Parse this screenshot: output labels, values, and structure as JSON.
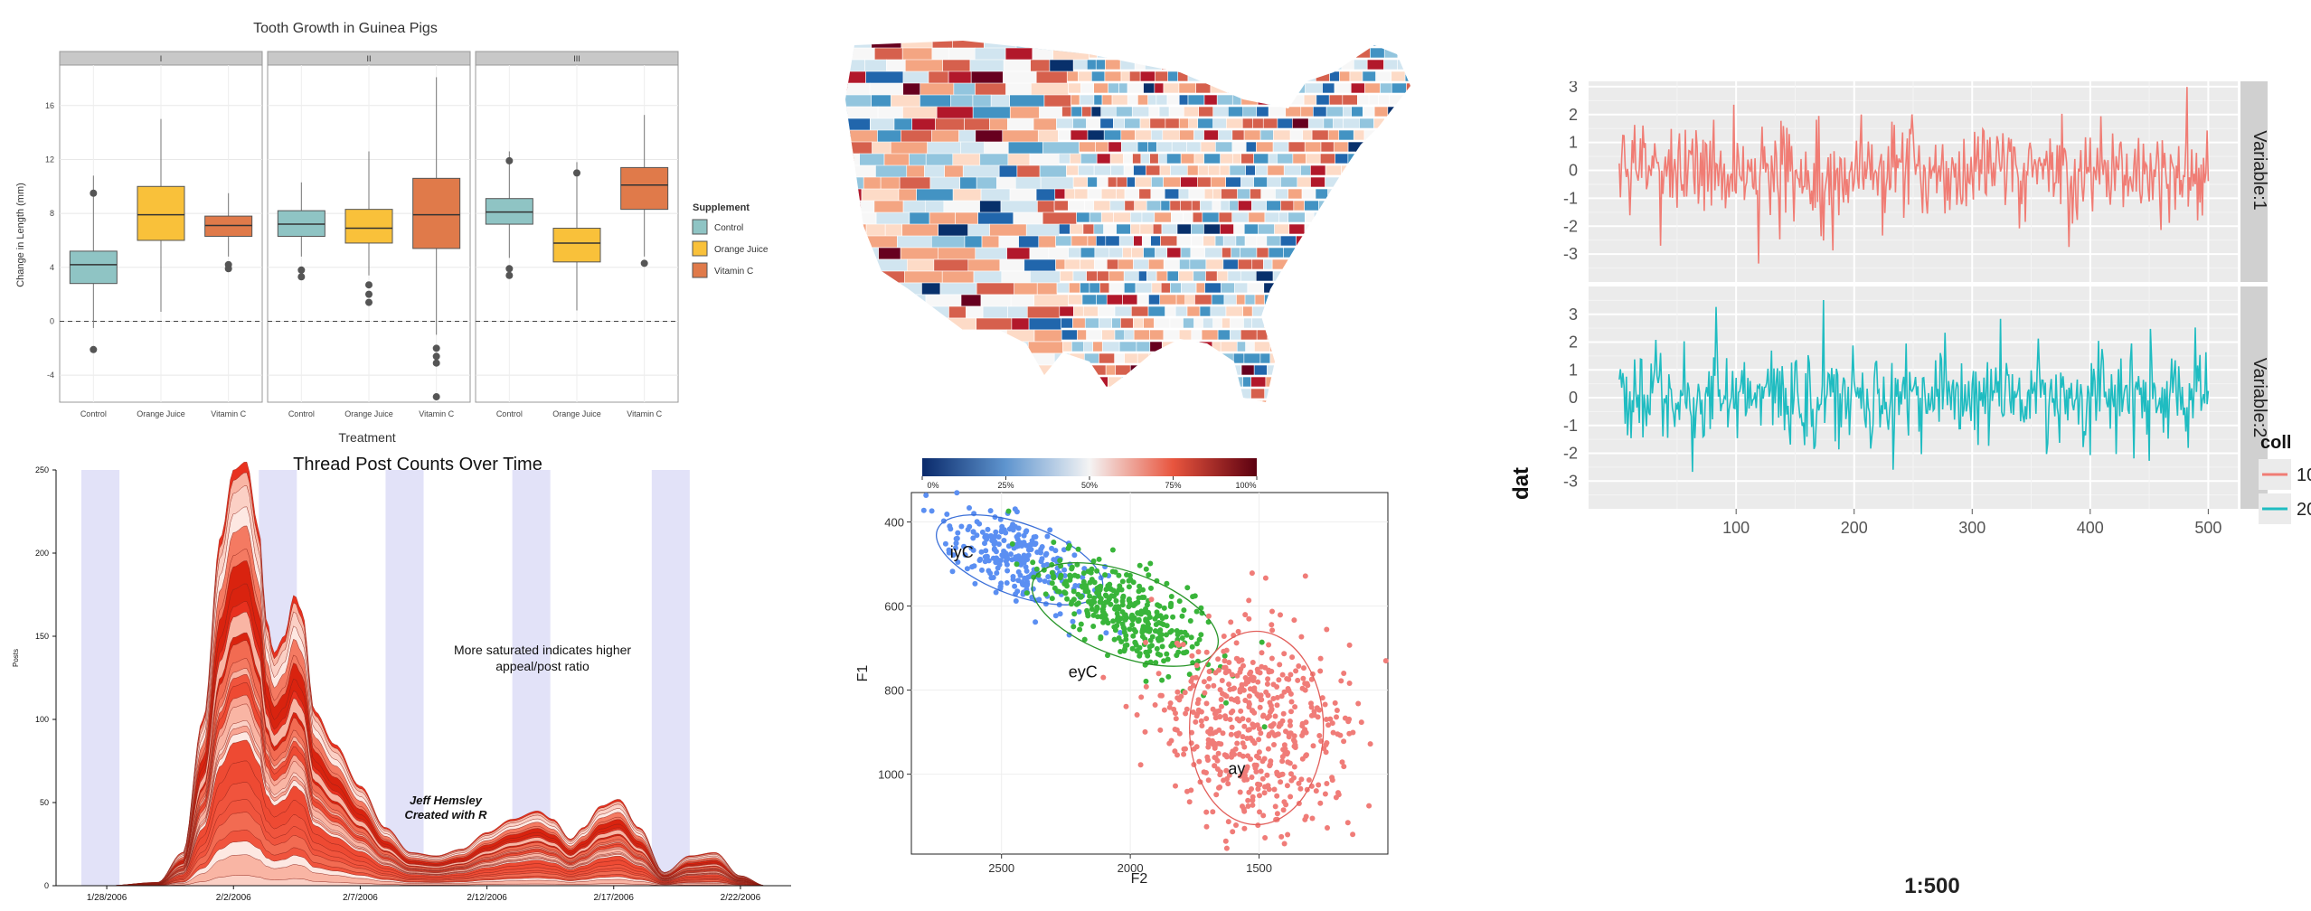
{
  "colors": {
    "control": "#8fc4c4",
    "oj": "#f9c13a",
    "vitc": "#e07a4a",
    "blue_pts": "#5b8ff2",
    "green_pts": "#39b53a",
    "red_pts": "#f07c78",
    "series1": "#f07c74",
    "series2": "#1fbcc1",
    "stream_red": "#e8311f",
    "stream_band": "#e2e2f8",
    "ggplot_bg": "#ebebeb",
    "strip_bg": "#d0d0d0"
  },
  "map_panel": {
    "icon": "us-counties-choropleth"
  },
  "chart_data": [
    {
      "id": "tooth",
      "type": "box",
      "title": "Tooth Growth in Guinea Pigs",
      "xlabel": "Treatment",
      "ylabel": "Change in Length (mm)",
      "yticks": [
        "-4",
        "0",
        "4",
        "8",
        "12",
        "16"
      ],
      "ylim": [
        -6,
        19
      ],
      "facets": [
        "I",
        "II",
        "III"
      ],
      "categories": [
        "Control",
        "Orange Juice",
        "Vitamin C"
      ],
      "legend": {
        "title": "Supplement",
        "entries": [
          "Control",
          "Orange Juice",
          "Vitamin C"
        ],
        "position": "right"
      },
      "boxes": [
        [
          {
            "q1": 2.8,
            "med": 4.2,
            "q3": 5.2,
            "wlo": -0.5,
            "whi": 10.8,
            "out": [
              9.5,
              -2.1
            ]
          },
          {
            "q1": 6.0,
            "med": 7.9,
            "q3": 10.0,
            "wlo": 0.7,
            "whi": 15.0,
            "out": []
          },
          {
            "q1": 6.3,
            "med": 7.1,
            "q3": 7.8,
            "wlo": 4.8,
            "whi": 9.5,
            "out": [
              4.2,
              3.9
            ]
          }
        ],
        [
          {
            "q1": 6.3,
            "med": 7.2,
            "q3": 8.2,
            "wlo": 4.8,
            "whi": 10.3,
            "out": [
              3.8,
              3.3
            ]
          },
          {
            "q1": 5.8,
            "med": 6.9,
            "q3": 8.3,
            "wlo": 3.4,
            "whi": 12.6,
            "out": [
              2.7,
              2.0,
              1.4
            ]
          },
          {
            "q1": 5.4,
            "med": 7.9,
            "q3": 10.6,
            "wlo": -1.0,
            "whi": 18.1,
            "out": [
              -2.0,
              -2.6,
              -3.1,
              -5.6
            ]
          }
        ],
        [
          {
            "q1": 7.2,
            "med": 8.1,
            "q3": 9.1,
            "wlo": 4.7,
            "whi": 12.6,
            "out": [
              11.9,
              3.9,
              3.4
            ]
          },
          {
            "q1": 4.4,
            "med": 5.8,
            "q3": 6.9,
            "wlo": 0.8,
            "whi": 11.8,
            "out": [
              11.0
            ]
          },
          {
            "q1": 8.3,
            "med": 10.1,
            "q3": 11.4,
            "wlo": 4.8,
            "whi": 15.3,
            "out": [
              4.3
            ]
          }
        ]
      ]
    },
    {
      "id": "stream",
      "type": "area",
      "title": "Thread Post Counts Over Time",
      "ylabel": "Posts",
      "xlabel": "",
      "yticks": [
        "0",
        "50",
        "100",
        "150",
        "200",
        "250"
      ],
      "ylim": [
        0,
        250
      ],
      "xticks": [
        "1/28/2006",
        "2/2/2006",
        "2/7/2006",
        "2/12/2006",
        "2/17/2006",
        "2/22/2006"
      ],
      "xtick_days": [
        0,
        5,
        10,
        15,
        20,
        25
      ],
      "xlim": [
        -2,
        27
      ],
      "weekend_bands_days": [
        [
          -1,
          0.5
        ],
        [
          6,
          7.5
        ],
        [
          11,
          12.5
        ],
        [
          16,
          17.5
        ]
      ],
      "total_posts": {
        "day": [
          0,
          2,
          3,
          3.8,
          4.5,
          5,
          5.5,
          6.0,
          6.3,
          6.6,
          7.0,
          7.4,
          7.7,
          8.2,
          9,
          10,
          11,
          12,
          13,
          14,
          15,
          16,
          17,
          17.6,
          18.3,
          18.8,
          19.5,
          20.2,
          21,
          22,
          23,
          24,
          25,
          26
        ],
        "posts": [
          0,
          2,
          20,
          100,
          210,
          250,
          255,
          215,
          160,
          140,
          150,
          175,
          165,
          105,
          85,
          60,
          35,
          20,
          18,
          22,
          32,
          40,
          45,
          40,
          28,
          35,
          48,
          52,
          35,
          8,
          18,
          20,
          6,
          0
        ]
      },
      "annotation": [
        "More saturated indicates higher",
        "appeal/post ratio"
      ],
      "credit": [
        "Jeff Hemsley",
        "Created with R"
      ]
    },
    {
      "id": "vowels",
      "type": "scatter",
      "xlabel": "F2",
      "ylabel": "F1",
      "xticks": [
        "2500",
        "2000",
        "1500"
      ],
      "xtick_values": [
        2500,
        2000,
        1500
      ],
      "xlim": [
        2850,
        1000
      ],
      "yticks": [
        "400",
        "600",
        "800",
        "1000"
      ],
      "ytick_values": [
        400,
        600,
        800,
        1000
      ],
      "ylim": [
        330,
        1190
      ],
      "colorbar": {
        "ticks": [
          "0%",
          "25%",
          "50%",
          "75%",
          "100%"
        ]
      },
      "groups": [
        {
          "label": "iyC",
          "cx": 2430,
          "cy": 490,
          "sx": 130,
          "sy": 50,
          "n": 260,
          "ellipse": {
            "rx": 340,
            "ry": 85,
            "angle": 20
          }
        },
        {
          "label": "eyC",
          "cx": 2020,
          "cy": 620,
          "sx": 160,
          "sy": 55,
          "n": 360,
          "ellipse": {
            "rx": 380,
            "ry": 100,
            "angle": 20
          }
        },
        {
          "label": "ay",
          "cx": 1510,
          "cy": 890,
          "sx": 180,
          "sy": 120,
          "n": 520,
          "ellipse": {
            "rx": 260,
            "ry": 230,
            "angle": 0
          }
        }
      ]
    },
    {
      "id": "ts",
      "type": "line",
      "xlabel": "1:500",
      "ylabel": "dat",
      "xticks": [
        "100",
        "200",
        "300",
        "400",
        "500"
      ],
      "xtick_values": [
        100,
        200,
        300,
        400,
        500
      ],
      "xlim": [
        -25,
        525
      ],
      "yticks": [
        "3",
        "2",
        "1",
        "0",
        "-1",
        "-2",
        "-3"
      ],
      "ytick_values": [
        3,
        2,
        1,
        0,
        -1,
        -2,
        -3
      ],
      "ylim": [
        -4,
        4
      ],
      "legend": {
        "title": "coll",
        "entries": [
          "10",
          "20"
        ],
        "position": "right"
      },
      "series": [
        {
          "name": "10",
          "strip": "Variable:1",
          "n": 500
        },
        {
          "name": "20",
          "strip": "Variable:2",
          "n": 500
        }
      ]
    }
  ]
}
